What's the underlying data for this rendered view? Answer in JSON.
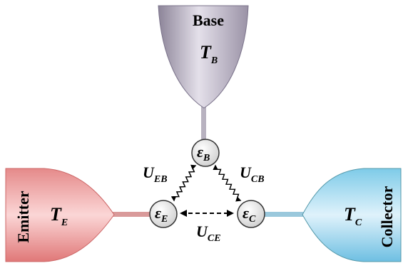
{
  "reservoirs": {
    "base": {
      "name": "Base",
      "temperature": {
        "symbol": "T",
        "subscript": "B"
      }
    },
    "emitter": {
      "name": "Emitter",
      "temperature": {
        "symbol": "T",
        "subscript": "E"
      }
    },
    "collector": {
      "name": "Collector",
      "temperature": {
        "symbol": "T",
        "subscript": "C"
      }
    }
  },
  "nodes": [
    {
      "symbol": "ε",
      "subscript": "B"
    },
    {
      "symbol": "ε",
      "subscript": "E"
    },
    {
      "symbol": "ε",
      "subscript": "C"
    }
  ],
  "couplings": [
    {
      "symbol": "U",
      "subscript": "EB"
    },
    {
      "symbol": "U",
      "subscript": "CB"
    },
    {
      "symbol": "U",
      "subscript": "CE"
    }
  ]
}
